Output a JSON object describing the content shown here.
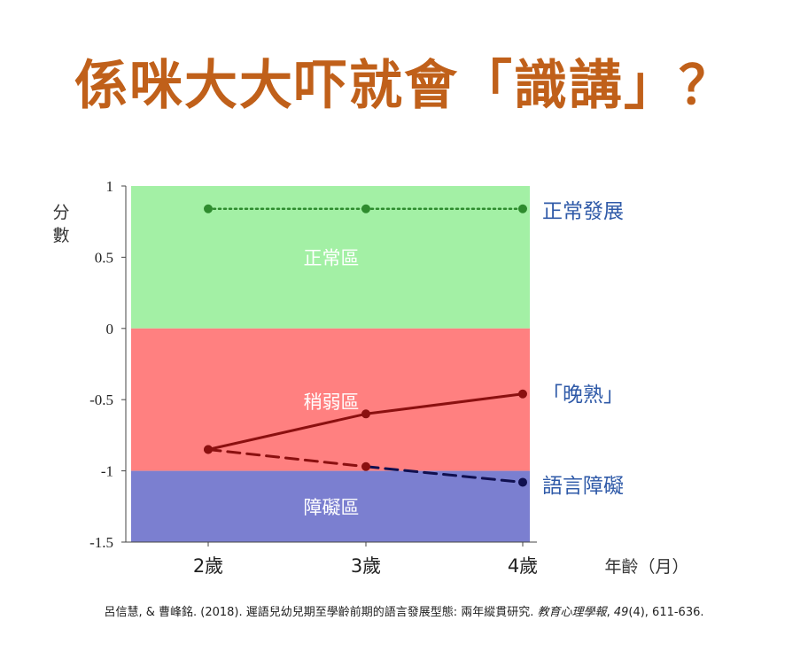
{
  "title": "係咪大大吓就會「識講」？",
  "reference": {
    "authors": "呂信慧, & 曹峰銘. (2018). 遲語兒幼兒期至學齡前期的語言發展型態: 兩年縱貫研究. ",
    "journal": "教育心理學報",
    "volume": "49",
    "rest": "(4), 611-636."
  },
  "chart_data": {
    "type": "line",
    "ylabel": "分數",
    "xlabel": "年齡（月）",
    "categories": [
      "2歲",
      "3歲",
      "4歲"
    ],
    "ylim": [
      -1.5,
      1
    ],
    "yticks": [
      "1",
      "0.5",
      "0",
      "-0.5",
      "-1",
      "-1.5"
    ],
    "zones": [
      {
        "label": "正常區",
        "from": 0,
        "to": 1,
        "color": "#a3f0a5"
      },
      {
        "label": "稍弱區",
        "from": -1,
        "to": 0,
        "color": "#ff8080"
      },
      {
        "label": "障礙區",
        "from": -1.5,
        "to": -1,
        "color": "#7b7fd0"
      }
    ],
    "series": [
      {
        "name": "正常發展",
        "values": [
          0.84,
          0.84,
          0.84
        ],
        "style": "dotted",
        "color": "#2e8b2e"
      },
      {
        "name": "「晚熟」",
        "values": [
          -0.85,
          -0.6,
          -0.46
        ],
        "style": "solid",
        "color": "#8b1010"
      },
      {
        "name": "語言障礙",
        "values": [
          -0.85,
          -0.97,
          -1.08
        ],
        "style": "dashed",
        "color": "#8b1010",
        "end_color": "#101050"
      }
    ]
  }
}
